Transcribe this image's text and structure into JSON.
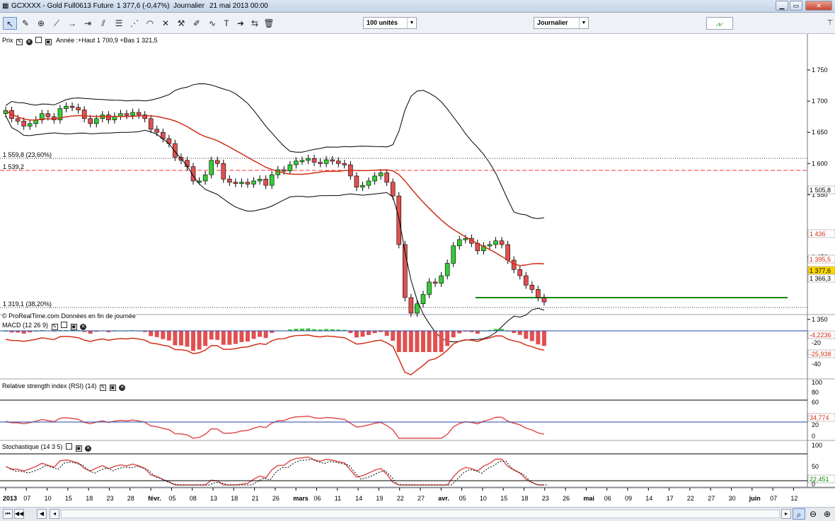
{
  "window": {
    "instrument": "GCXXXX - Gold Full0613 Future",
    "last_change": "1 377,6 (-0,47%)",
    "period": "Journalier",
    "datetime": "21 mai 2013 00:00"
  },
  "toolbar": {
    "units_value": "100 unités",
    "period_value": "Journalier",
    "tools": [
      "pointer-tool",
      "measure-tool",
      "zoom-tool",
      "trendline-tool",
      "horizontal-line-tool",
      "vertical-line-tool",
      "channel-tool",
      "fibonacci-tool",
      "fan-tool",
      "arc-tool",
      "hammer-tool",
      "pen-tool",
      "wave-tool",
      "text-tool",
      "arrow-tool",
      "move-tool",
      "trash-tool"
    ]
  },
  "price_panel": {
    "title": "Prix",
    "info": "Année :+Haut 1 700,9 +Bas 1 321,5",
    "fib_upper_label": "1 559,8 (23,60%)",
    "support_label": "1 539,2",
    "fib_lower_label": "1 319,1 (38,20%)",
    "source": "© ProRealTime.com   Données en fin de journée",
    "axis_ticks": [
      "1 750",
      "1 700",
      "1 650",
      "1 600",
      "1 550",
      "1 450",
      "1 350"
    ],
    "tag_upper_band": "1 505,8",
    "tag_ma": "1 436",
    "tag_sar": "1 395,5",
    "tag_last": "1 377,6",
    "tag_low": "1 366,3",
    "tag_hidden": "1 395",
    "colors": {
      "bull": "#33cc33",
      "bear": "#e05050",
      "ma": "#d03018",
      "band": "#000000",
      "support": "#ff3030",
      "trend": "#008800"
    }
  },
  "macd_panel": {
    "title": "MACD (12 26 9)",
    "tag_value": "-4,2236",
    "tag_signal": "-25,938",
    "axis_ticks": [
      "-20",
      "-40"
    ]
  },
  "rsi_panel": {
    "title": "Relative strength index (RSI) (14)",
    "tag_value": "34,774",
    "axis_ticks": [
      "100",
      "80",
      "60",
      "20",
      "0"
    ]
  },
  "stoch_panel": {
    "title": "Stochastique (14 3 5)",
    "tag_value": "22,451",
    "axis_ticks": [
      "100",
      "50",
      "0"
    ]
  },
  "dates": {
    "axis_labels": [
      "2013",
      "07",
      "10",
      "15",
      "18",
      "23",
      "28",
      "févr.",
      "05",
      "08",
      "13",
      "18",
      "21",
      "26",
      "mars",
      "06",
      "11",
      "14",
      "19",
      "22",
      "27",
      "avr.",
      "05",
      "10",
      "15",
      "18",
      "23",
      "26",
      "mai",
      "06",
      "09",
      "14",
      "17",
      "22",
      "27",
      "30",
      "juin",
      "07",
      "12"
    ]
  }
}
